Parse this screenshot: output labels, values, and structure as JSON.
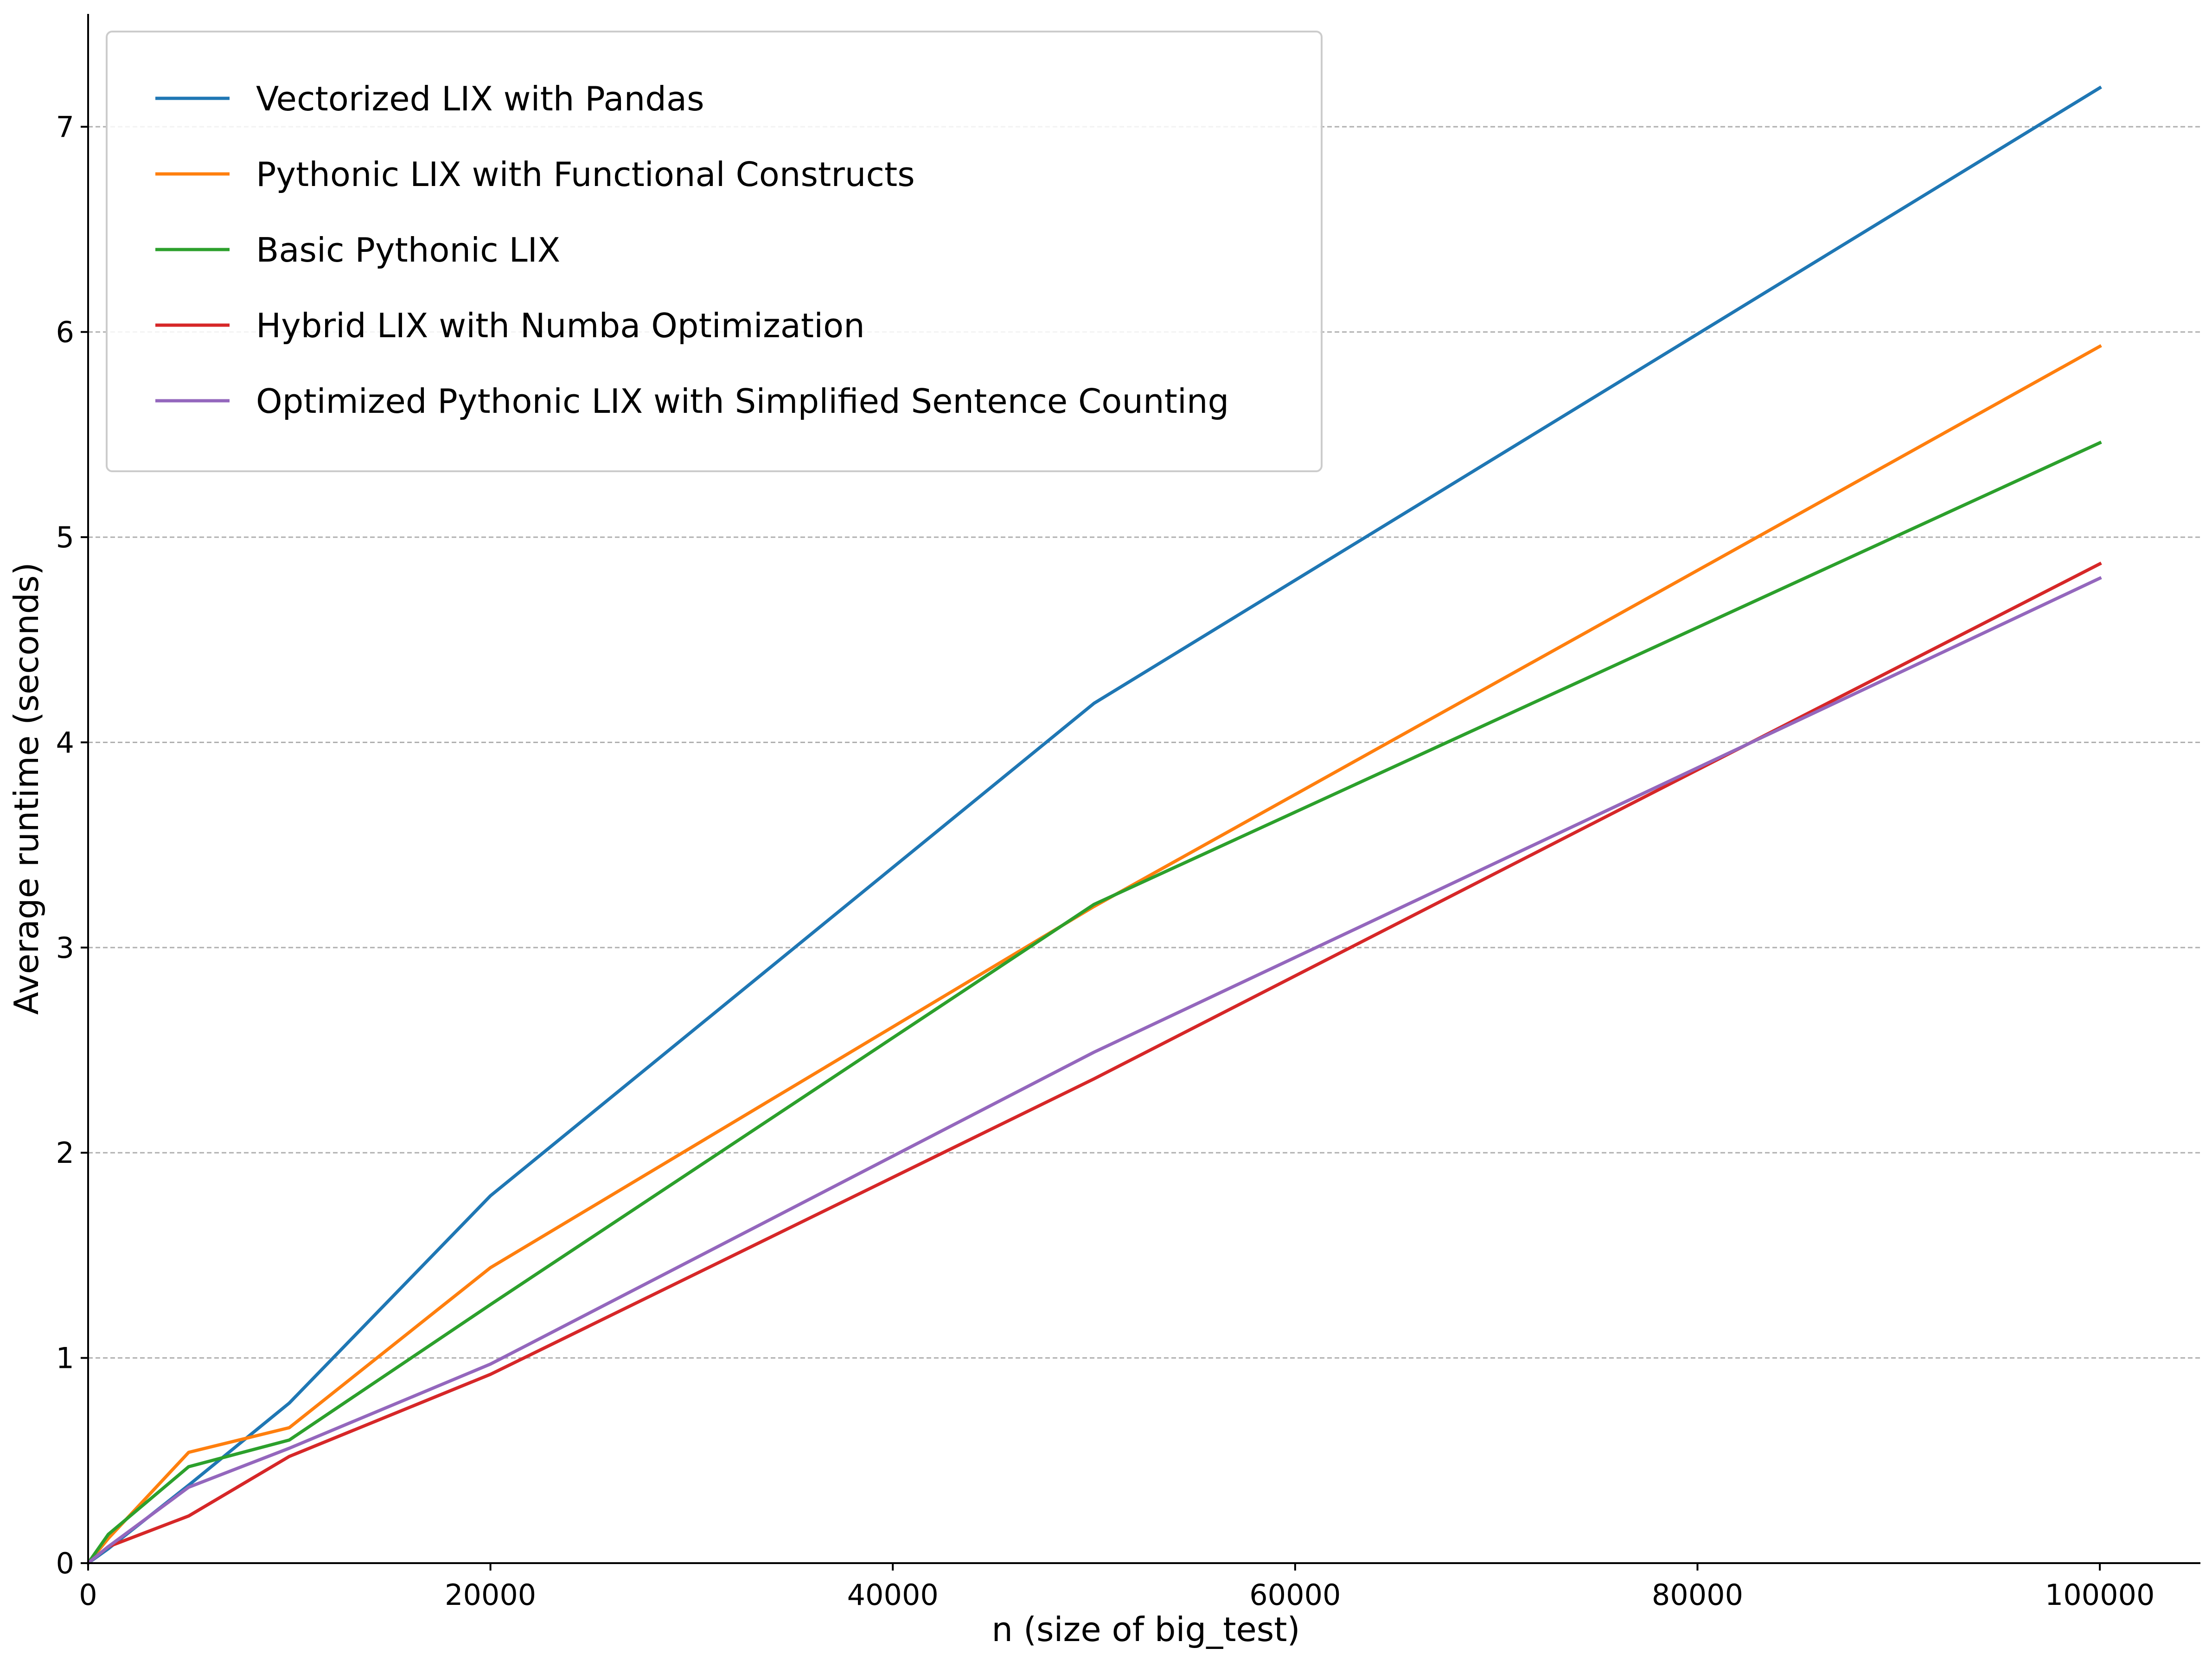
{
  "chart_data": {
    "type": "line",
    "xlabel": "n (size of big_test)",
    "ylabel": "Average runtime (seconds)",
    "xlim": [
      0,
      105000
    ],
    "ylim": [
      0,
      7.55
    ],
    "xticks": [
      0,
      20000,
      40000,
      60000,
      80000,
      100000
    ],
    "xtick_labels": [
      "0",
      "20000",
      "40000",
      "60000",
      "80000",
      "100000"
    ],
    "yticks": [
      0,
      1,
      2,
      3,
      4,
      5,
      6,
      7
    ],
    "ytick_labels": [
      "0",
      "1",
      "2",
      "3",
      "4",
      "5",
      "6",
      "7"
    ],
    "grid": "y, dashed",
    "legend_position": "upper-left",
    "x": [
      0,
      1000,
      5000,
      10000,
      20000,
      50000,
      100000
    ],
    "series": [
      {
        "name": "Vectorized LIX with Pandas",
        "color": "#1f77b4",
        "values": [
          0,
          0.07,
          0.38,
          0.78,
          1.79,
          4.19,
          7.19
        ]
      },
      {
        "name": "Pythonic LIX with Functional Constructs",
        "color": "#ff7f0e",
        "values": [
          0,
          0.12,
          0.54,
          0.66,
          1.44,
          3.2,
          5.93
        ]
      },
      {
        "name": "Basic Pythonic LIX",
        "color": "#2ca02c",
        "values": [
          0,
          0.14,
          0.47,
          0.6,
          1.26,
          3.21,
          5.46
        ]
      },
      {
        "name": "Hybrid LIX with Numba Optimization",
        "color": "#d62728",
        "values": [
          0,
          0.08,
          0.23,
          0.52,
          0.92,
          2.36,
          4.87
        ]
      },
      {
        "name": "Optimized Pythonic LIX with Simplified Sentence Counting",
        "color": "#9467bd",
        "values": [
          0,
          0.08,
          0.37,
          0.56,
          0.97,
          2.49,
          4.8
        ]
      }
    ]
  }
}
